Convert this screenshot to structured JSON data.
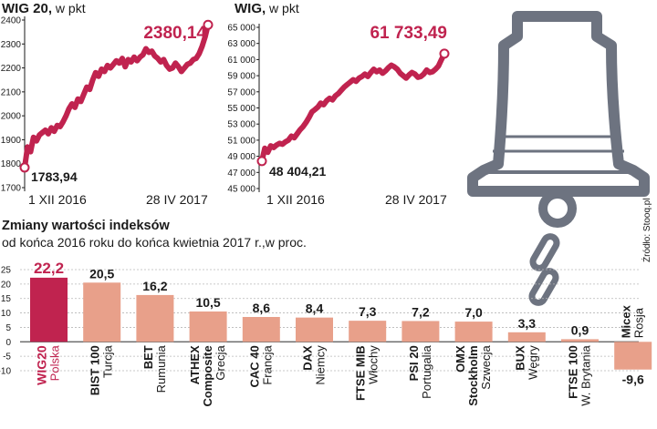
{
  "source": "Źródło: Stooq.pl",
  "colors": {
    "accent": "#c0234f",
    "bar": "#e8a08a",
    "bar_highlight": "#c0234f",
    "bell": "#6d7380"
  },
  "icons": {
    "illustration": "bell-icon",
    "chain": "chain-icon"
  },
  "chart_data": [
    {
      "type": "line",
      "title": "WIG 20,",
      "unit": " w pkt",
      "ylim": [
        1700,
        2400
      ],
      "yticks": [
        1700,
        1800,
        1900,
        2000,
        2100,
        2200,
        2300,
        2400
      ],
      "ytick_labels": [
        "1700",
        "1800",
        "1900",
        "2000",
        "2100",
        "2200",
        "2300",
        "2400"
      ],
      "x_labels": [
        "1 XII 2016",
        "28 IV 2017"
      ],
      "start_label": "1783,94",
      "end_label": "2380,14",
      "series": [
        {
          "values": [
            1783.94,
            1870,
            1850,
            1910,
            1895,
            1920,
            1930,
            1940,
            1925,
            1950,
            1935,
            1960,
            1955,
            1975,
            2000,
            2030,
            2050,
            2035,
            2070,
            2060,
            2090,
            2120,
            2110,
            2150,
            2180,
            2165,
            2195,
            2185,
            2210,
            2200,
            2215,
            2230,
            2220,
            2240,
            2205,
            2235,
            2225,
            2245,
            2230,
            2245,
            2255,
            2280,
            2265,
            2270,
            2250,
            2240,
            2225,
            2235,
            2210,
            2195,
            2200,
            2220,
            2205,
            2185,
            2200,
            2215,
            2220,
            2235,
            2240,
            2260,
            2290,
            2330,
            2380.14
          ]
        }
      ]
    },
    {
      "type": "line",
      "title": "WIG,",
      "unit": " w pkt",
      "ylim": [
        45000,
        65000
      ],
      "yticks": [
        45000,
        47000,
        49000,
        51000,
        53000,
        55000,
        57000,
        59000,
        61000,
        63000,
        65000
      ],
      "ytick_labels": [
        "45 000",
        "47 000",
        "49 000",
        "51 000",
        "53 000",
        "55 000",
        "57 000",
        "59 000",
        "61 000",
        "63 000",
        "65 000"
      ],
      "x_labels": [
        "1 XII 2016",
        "28 IV 2017"
      ],
      "start_label": "48 404,21",
      "end_label": "61 733,49",
      "series": [
        {
          "values": [
            48404.21,
            50000,
            49500,
            50300,
            50100,
            50400,
            50600,
            50500,
            50800,
            51000,
            51500,
            51300,
            51800,
            52300,
            52700,
            53200,
            53800,
            54500,
            54800,
            55100,
            55600,
            55400,
            55900,
            56200,
            56000,
            56500,
            56800,
            57200,
            57600,
            57900,
            58200,
            58500,
            58300,
            58700,
            58900,
            59200,
            58900,
            59400,
            59800,
            59500,
            59700,
            59300,
            59600,
            60000,
            60300,
            60100,
            59800,
            59300,
            59000,
            58700,
            59100,
            59400,
            59200,
            58800,
            58900,
            59200,
            59700,
            59400,
            59500,
            59800,
            60200,
            61000,
            61733.49
          ]
        }
      ]
    },
    {
      "type": "bar",
      "title": "Zmiany wartości indeksów",
      "subtitle": "od końca 2016 roku do końca kwietnia 2017 r.,w proc.",
      "ylim": [
        -10,
        25
      ],
      "yticks": [
        -10,
        -5,
        0,
        5,
        10,
        15,
        20,
        25
      ],
      "ytick_labels": [
        "-10",
        "-5",
        "0",
        "5",
        "10",
        "15",
        "20",
        "25"
      ],
      "value_labels": [
        "22,2",
        "20,5",
        "16,2",
        "10,5",
        "8,6",
        "8,4",
        "7,3",
        "7,2",
        "7,0",
        "3,3",
        "0,9",
        "-9,6"
      ],
      "categories": [
        {
          "name": "WIG20",
          "name2": "",
          "country": "Polska"
        },
        {
          "name": "BIST 100",
          "name2": "",
          "country": "Turcja"
        },
        {
          "name": "BET",
          "name2": "",
          "country": "Rumunia"
        },
        {
          "name": "ATHEX",
          "name2": "Composite",
          "country": "Grecja"
        },
        {
          "name": "CAC 40",
          "name2": "",
          "country": "Francja"
        },
        {
          "name": "DAX",
          "name2": "",
          "country": "Niemcy"
        },
        {
          "name": "FTSE MIB",
          "name2": "",
          "country": "Włochy"
        },
        {
          "name": "PSI 20",
          "name2": "",
          "country": "Portugalia"
        },
        {
          "name": "OMX",
          "name2": "Stockholm",
          "country": "Szwecja"
        },
        {
          "name": "BUX",
          "name2": "",
          "country": "Węgry"
        },
        {
          "name": "FTSE 100",
          "name2": "",
          "country": "W. Brytania"
        },
        {
          "name": "Micex",
          "name2": "",
          "country": "Rosja"
        }
      ],
      "values": [
        22.2,
        20.5,
        16.2,
        10.5,
        8.6,
        8.4,
        7.3,
        7.2,
        7.0,
        3.3,
        0.9,
        -9.6
      ],
      "highlight_index": 0
    }
  ]
}
